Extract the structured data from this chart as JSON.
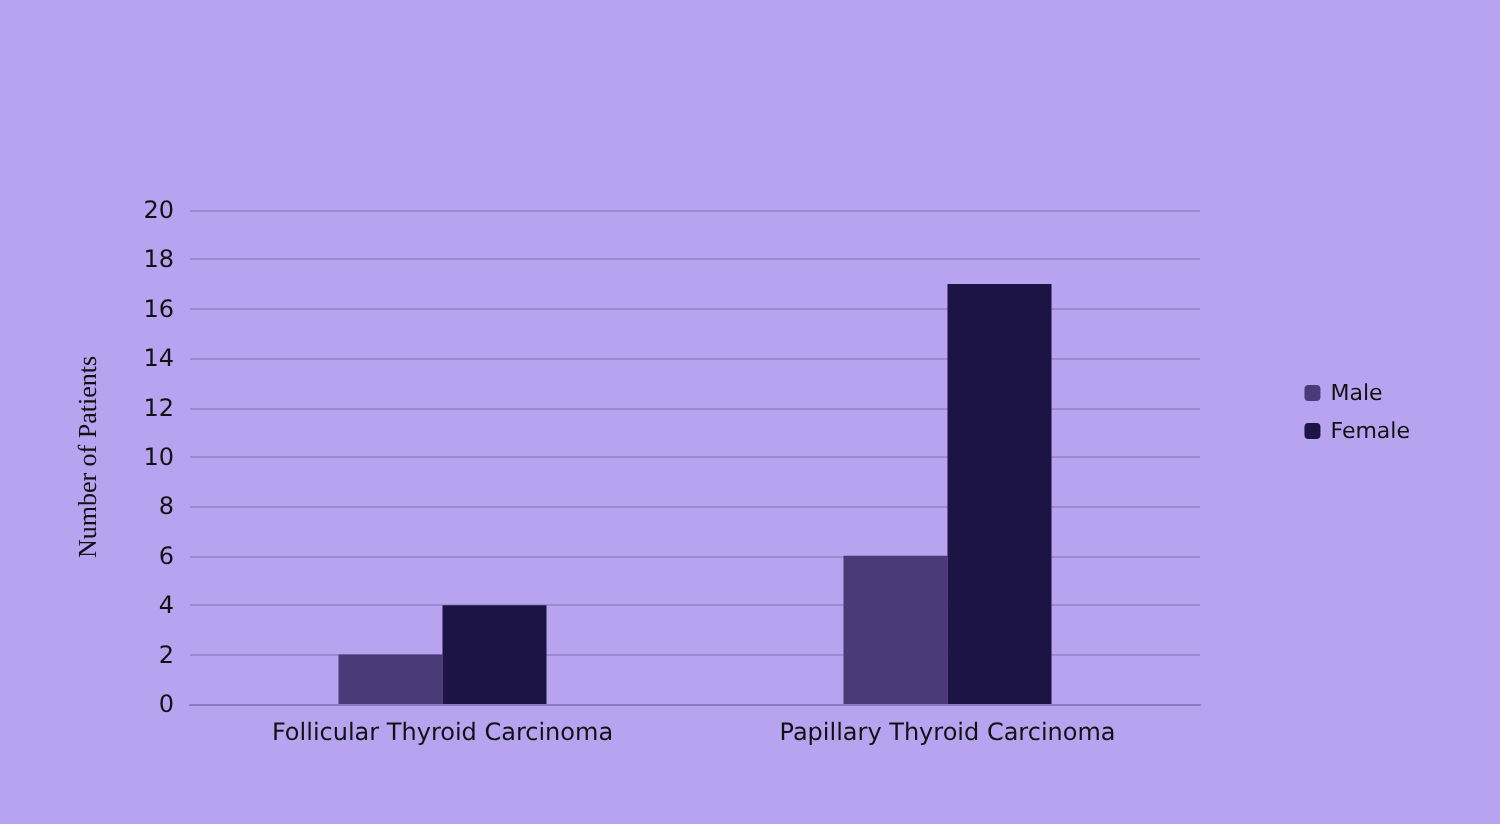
{
  "chart_data": {
    "type": "bar",
    "ylabel": "Number of Patients",
    "categories": [
      "Follicular Thyroid Carcinoma",
      "Papillary Thyroid Carcinoma"
    ],
    "series": [
      {
        "name": "Male",
        "color": "#4b3a78",
        "values": [
          2,
          6
        ]
      },
      {
        "name": "Female",
        "color": "#1c1445",
        "values": [
          4,
          17
        ]
      }
    ],
    "ylim": [
      0,
      20
    ],
    "yticks": [
      0,
      2,
      4,
      6,
      8,
      10,
      12,
      14,
      16,
      18,
      20
    ],
    "grid": "y",
    "legend": "right"
  }
}
